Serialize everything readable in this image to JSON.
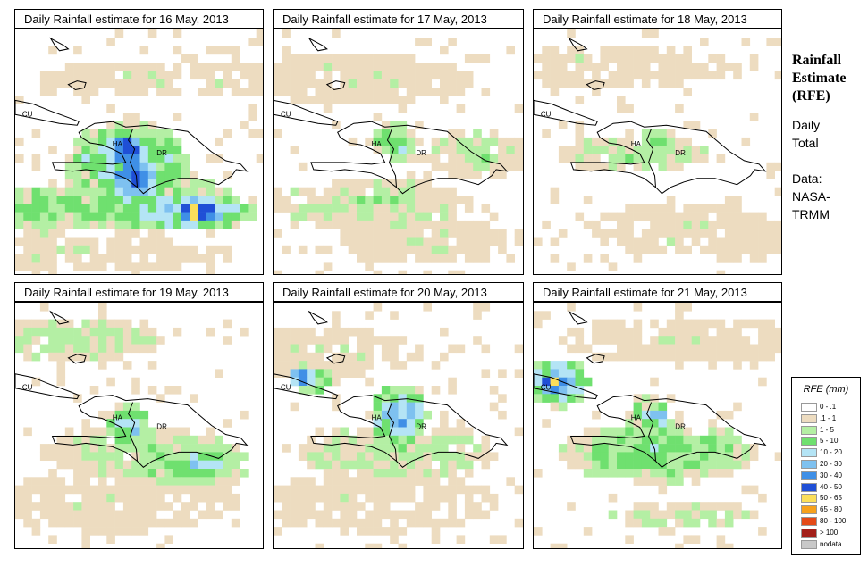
{
  "panels": [
    {
      "title": "Daily Rainfall estimate for  16 May, 2013"
    },
    {
      "title": "Daily Rainfall estimate for  17 May, 2013"
    },
    {
      "title": "Daily Rainfall estimate for  18 May, 2013"
    },
    {
      "title": "Daily Rainfall estimate for  19 May, 2013"
    },
    {
      "title": "Daily Rainfall estimate for  20 May, 2013"
    },
    {
      "title": "Daily Rainfall estimate for  21 May, 2013"
    }
  ],
  "map_labels": {
    "cuba": "CU",
    "haiti": "HA",
    "dominican_republic": "DR"
  },
  "sidebar": {
    "title_line1": "Rainfall",
    "title_line2": "Estimate",
    "title_line3": "(RFE)",
    "period_line1": "Daily",
    "period_line2": "Total",
    "source_line1": "Data:",
    "source_line2": "NASA-",
    "source_line3": "TRMM"
  },
  "legend": {
    "title": "RFE (mm)",
    "items": [
      {
        "label": "0 - .1",
        "color": "#ffffff"
      },
      {
        "label": ".1 - 1",
        "color": "#eddcc0"
      },
      {
        "label": "1 - 5",
        "color": "#b4efa4"
      },
      {
        "label": "5 - 10",
        "color": "#6fe06f"
      },
      {
        "label": "10 - 20",
        "color": "#b4e4f5"
      },
      {
        "label": "20 - 30",
        "color": "#7ec1f0"
      },
      {
        "label": "30 - 40",
        "color": "#3f8fe6"
      },
      {
        "label": "40 - 50",
        "color": "#1f4fd6"
      },
      {
        "label": "50 - 65",
        "color": "#fbdf5a"
      },
      {
        "label": "65 - 80",
        "color": "#f6a11d"
      },
      {
        "label": "80 - 100",
        "color": "#e44a18"
      },
      {
        "label": "> 100",
        "color": "#a3201a"
      },
      {
        "label": "nodata",
        "color": "#c8c8c8"
      }
    ]
  }
}
